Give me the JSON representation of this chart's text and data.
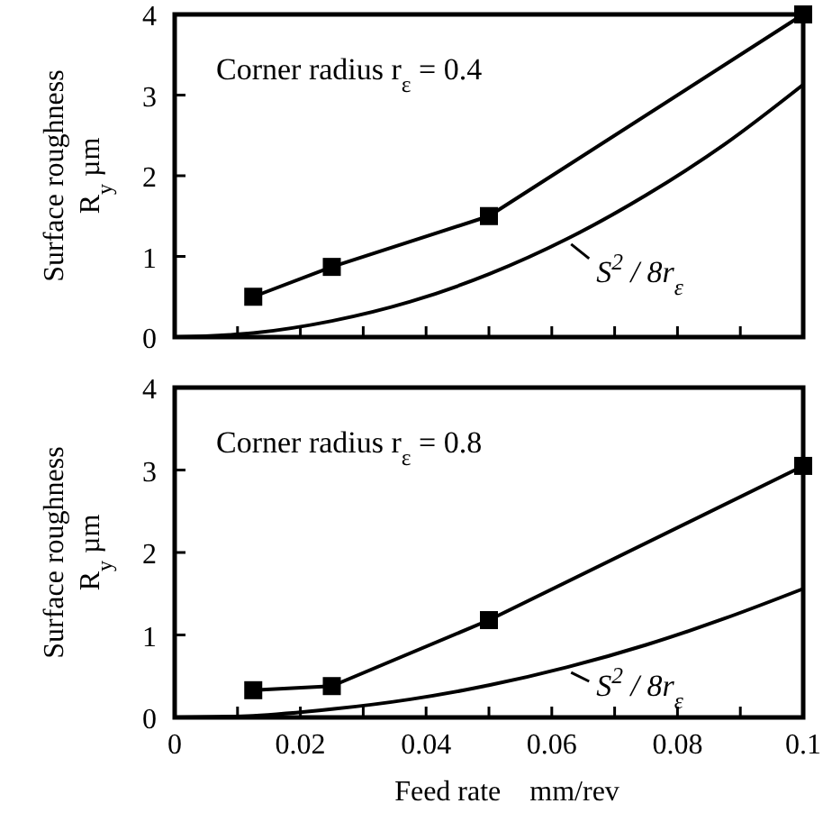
{
  "chart_data": [
    {
      "type": "line",
      "ylabel": "Surface roughness R$_{y}$  µm",
      "annotations": [
        "Corner radius r$_{ε}$ = 0.4"
      ],
      "xlim": [
        0,
        0.1
      ],
      "ylim": [
        0,
        4
      ],
      "yticks": [
        0,
        1,
        2,
        3,
        4
      ],
      "xticks": [
        {
          "value": 0,
          "label": null
        },
        {
          "value": 0.01,
          "label": null
        },
        {
          "value": 0.02,
          "label": null
        },
        {
          "value": 0.03,
          "label": null
        },
        {
          "value": 0.04,
          "label": null
        },
        {
          "value": 0.05,
          "label": null
        },
        {
          "value": 0.06,
          "label": null
        },
        {
          "value": 0.07,
          "label": null
        },
        {
          "value": 0.08,
          "label": null
        },
        {
          "value": 0.09,
          "label": null
        },
        {
          "value": 0.1,
          "label": null
        }
      ],
      "tick_labels": "y",
      "series": [
        {
          "color": "#000000",
          "marker": "square",
          "x": [
            0.0125,
            0.025,
            0.05,
            0.1
          ],
          "values": [
            0.5,
            0.87,
            1.5,
            4.0
          ]
        },
        {
          "name": "S$^{2}$ / 8r$_{ε}$",
          "color": "#000000",
          "marker": "none",
          "x": [
            0,
            0.0125,
            0.025,
            0.0375,
            0.05,
            0.0625,
            0.075,
            0.0875,
            0.1
          ],
          "values": [
            0,
            0.05,
            0.2,
            0.44,
            0.78,
            1.22,
            1.76,
            2.39,
            3.13
          ]
        }
      ]
    },
    {
      "type": "line",
      "xlabel": "Feed rate    mm/rev",
      "ylabel": "Surface roughness R$_{y}$  µm",
      "annotations": [
        "Corner radius r$_{ε}$ = 0.8"
      ],
      "xlim": [
        0,
        0.1
      ],
      "ylim": [
        0,
        4
      ],
      "yticks": [
        0,
        1,
        2,
        3,
        4
      ],
      "xticks": [
        0,
        {
          "value": 0.01,
          "label": null
        },
        0.02,
        {
          "value": 0.03,
          "label": null
        },
        0.04,
        {
          "value": 0.05,
          "label": null
        },
        0.06,
        {
          "value": 0.07,
          "label": null
        },
        0.08,
        {
          "value": 0.09,
          "label": null
        },
        0.1
      ],
      "series": [
        {
          "color": "#000000",
          "marker": "square",
          "x": [
            0.0125,
            0.025,
            0.05,
            0.1
          ],
          "values": [
            0.33,
            0.38,
            1.18,
            3.05
          ]
        },
        {
          "name": "S$^{2}$ / 8r$_{ε}$",
          "color": "#000000",
          "marker": "none",
          "x": [
            0,
            0.0125,
            0.025,
            0.0375,
            0.05,
            0.0625,
            0.075,
            0.0875,
            0.1
          ],
          "values": [
            0,
            0.02,
            0.1,
            0.22,
            0.39,
            0.61,
            0.88,
            1.2,
            1.56
          ]
        }
      ]
    }
  ]
}
